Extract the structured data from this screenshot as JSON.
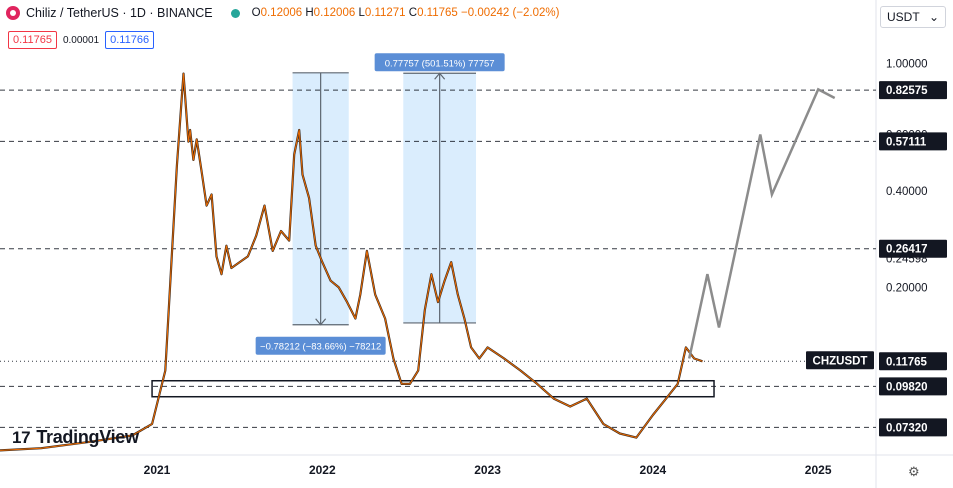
{
  "header": {
    "symbol": "Chiliz / TetherUS · 1D · BINANCE",
    "open_label": "O",
    "open": "0.12006",
    "high_label": "H",
    "high": "0.12006",
    "low_label": "L",
    "low": "0.11271",
    "close_label": "C",
    "close": "0.11765",
    "change": "−0.00242 (−2.02%)"
  },
  "quote": {
    "bid": "0.11765",
    "spread": "0.00001",
    "ask": "0.11766"
  },
  "currency_selector": {
    "value": "USDT",
    "arrow": "⌄"
  },
  "brand": {
    "name": "TradingView",
    "icon": "tradingview-logo"
  },
  "settings_icon": "gear-icon",
  "chart_data": {
    "type": "line",
    "series_name": "CHZUSDT",
    "ticker_label": "CHZUSDT",
    "y_scale": "log",
    "ylim": [
      0.06,
      1.15
    ],
    "y_ticks": [
      "1.00000",
      "0.60000",
      "0.40000",
      "0.20000"
    ],
    "y_tick_values": [
      1.0,
      0.6,
      0.4,
      0.2
    ],
    "x_ticks": [
      "2021",
      "2022",
      "2023",
      "2024",
      "2025"
    ],
    "x_tick_values": [
      2021.0,
      2022.0,
      2023.0,
      2024.0,
      2025.0
    ],
    "xlim": [
      2020.05,
      2025.35
    ],
    "price": {
      "x": [
        2020.05,
        2020.3,
        2020.6,
        2020.85,
        2020.97,
        2021.05,
        2021.12,
        2021.16,
        2021.19,
        2021.2,
        2021.22,
        2021.24,
        2021.27,
        2021.3,
        2021.33,
        2021.36,
        2021.39,
        2021.42,
        2021.45,
        2021.5,
        2021.55,
        2021.6,
        2021.65,
        2021.7,
        2021.75,
        2021.8,
        2021.83,
        2021.86,
        2021.88,
        2021.92,
        2021.96,
        2022.0,
        2022.05,
        2022.1,
        2022.15,
        2022.2,
        2022.23,
        2022.27,
        2022.32,
        2022.38,
        2022.43,
        2022.48,
        2022.53,
        2022.58,
        2022.62,
        2022.66,
        2022.7,
        2022.74,
        2022.78,
        2022.82,
        2022.86,
        2022.9,
        2022.95,
        2023.0,
        2023.1,
        2023.2,
        2023.3,
        2023.4,
        2023.5,
        2023.6,
        2023.7,
        2023.8,
        2023.9,
        2024.0,
        2024.08,
        2024.15,
        2024.2,
        2024.25,
        2024.3
      ],
      "y": [
        0.062,
        0.063,
        0.066,
        0.069,
        0.075,
        0.11,
        0.48,
        0.93,
        0.57,
        0.62,
        0.5,
        0.58,
        0.46,
        0.36,
        0.39,
        0.25,
        0.22,
        0.27,
        0.23,
        0.24,
        0.25,
        0.29,
        0.36,
        0.26,
        0.3,
        0.28,
        0.52,
        0.62,
        0.45,
        0.38,
        0.27,
        0.24,
        0.21,
        0.2,
        0.18,
        0.16,
        0.19,
        0.26,
        0.19,
        0.16,
        0.12,
        0.1,
        0.1,
        0.11,
        0.17,
        0.22,
        0.18,
        0.21,
        0.24,
        0.19,
        0.16,
        0.13,
        0.12,
        0.13,
        0.12,
        0.11,
        0.1,
        0.09,
        0.085,
        0.09,
        0.075,
        0.07,
        0.068,
        0.08,
        0.09,
        0.1,
        0.13,
        0.12,
        0.11765
      ]
    },
    "projection": {
      "x": [
        2024.22,
        2024.33,
        2024.4,
        2024.65,
        2024.72,
        2025.0,
        2025.1
      ],
      "y": [
        0.12,
        0.22,
        0.15,
        0.6,
        0.39,
        0.83,
        0.78
      ]
    },
    "price_levels": [
      {
        "value": 0.82575,
        "label": "0.82575",
        "style": "dashed",
        "highlight": true
      },
      {
        "value": 0.57111,
        "label": "0.57111",
        "style": "dashed",
        "highlight": true
      },
      {
        "value": 0.26417,
        "label": "0.26417",
        "style": "dashed",
        "highlight": true
      },
      {
        "value": 0.24598,
        "label": "0.24598",
        "style": "none",
        "highlight": false
      },
      {
        "value": 0.11765,
        "label": "0.11765",
        "style": "dotted",
        "highlight": true
      },
      {
        "value": 0.0982,
        "label": "0.09820",
        "style": "dashed",
        "highlight": true
      },
      {
        "value": 0.0732,
        "label": "0.07320",
        "style": "dashed",
        "highlight": true
      }
    ],
    "support_zone": {
      "x_start": 2020.97,
      "x_end": 2024.37,
      "y_low": 0.0912,
      "y_high": 0.1023
    },
    "measure_ranges": [
      {
        "x_start": 2021.82,
        "x_end": 2022.16,
        "y_from": 0.935,
        "y_to": 0.153,
        "label": "−0.78212 (−83.66%) −78212",
        "direction": "down"
      },
      {
        "x_start": 2022.49,
        "x_end": 2022.93,
        "y_from": 0.155,
        "y_to": 0.932,
        "label": "0.77757 (501.51%) 77757",
        "direction": "up"
      }
    ],
    "colors": {
      "price_line": "#ef6c00",
      "price_line_dark": "#3b2a1e",
      "projection": "#8c8c8c",
      "measure_fill": "#bbdefb",
      "measure_label_bg": "#5b8ed6",
      "label_bg": "#131722",
      "axis_text": "#131722",
      "grid": "#f0f3fa",
      "current_price_bg": "#131722"
    }
  }
}
